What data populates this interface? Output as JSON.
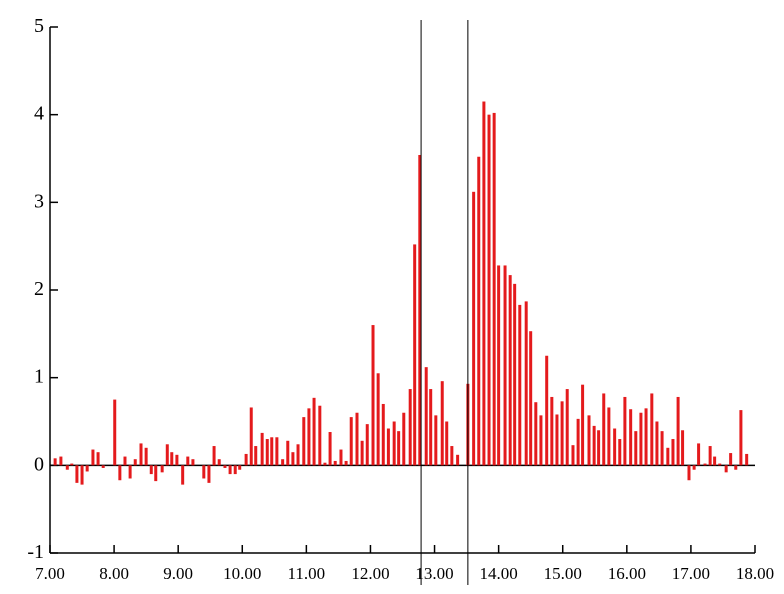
{
  "chart_data": {
    "type": "bar",
    "x": [
      7.08,
      7.17,
      7.27,
      7.34,
      7.42,
      7.5,
      7.58,
      7.67,
      7.75,
      7.83,
      8.01,
      8.09,
      8.17,
      8.25,
      8.33,
      8.42,
      8.5,
      8.58,
      8.65,
      8.75,
      8.83,
      8.9,
      8.98,
      9.07,
      9.15,
      9.23,
      9.4,
      9.48,
      9.56,
      9.64,
      9.73,
      9.81,
      9.89,
      9.96,
      10.06,
      10.14,
      10.21,
      10.31,
      10.39,
      10.46,
      10.54,
      10.63,
      10.71,
      10.79,
      10.87,
      10.96,
      11.04,
      11.12,
      11.21,
      11.29,
      11.37,
      11.45,
      11.54,
      11.62,
      11.7,
      11.79,
      11.87,
      11.95,
      12.04,
      12.12,
      12.2,
      12.28,
      12.37,
      12.44,
      12.52,
      12.62,
      12.69,
      12.77,
      12.87,
      12.94,
      13.02,
      13.12,
      13.19,
      13.27,
      13.36,
      13.52,
      13.61,
      13.69,
      13.77,
      13.85,
      13.93,
      14.0,
      14.1,
      14.18,
      14.25,
      14.33,
      14.43,
      14.5,
      14.58,
      14.66,
      14.75,
      14.83,
      14.91,
      14.99,
      15.07,
      15.16,
      15.24,
      15.31,
      15.41,
      15.49,
      15.56,
      15.64,
      15.72,
      15.81,
      15.89,
      15.97,
      16.06,
      16.14,
      16.22,
      16.3,
      16.39,
      16.47,
      16.55,
      16.64,
      16.72,
      16.8,
      16.87,
      16.97,
      17.05,
      17.12,
      17.22,
      17.3,
      17.37,
      17.45,
      17.55,
      17.62,
      17.7,
      17.78,
      17.87
    ],
    "values": [
      0.08,
      0.1,
      -0.05,
      0.02,
      -0.2,
      -0.22,
      -0.07,
      0.18,
      0.15,
      -0.03,
      0.75,
      -0.17,
      0.1,
      -0.15,
      0.07,
      0.25,
      0.2,
      -0.1,
      -0.18,
      -0.08,
      0.24,
      0.15,
      0.12,
      -0.22,
      0.1,
      0.07,
      -0.15,
      -0.2,
      0.22,
      0.07,
      -0.03,
      -0.1,
      -0.1,
      -0.05,
      0.13,
      0.66,
      0.22,
      0.37,
      0.3,
      0.32,
      0.32,
      0.07,
      0.28,
      0.15,
      0.24,
      0.55,
      0.65,
      0.77,
      0.68,
      0.03,
      0.38,
      0.05,
      0.18,
      0.05,
      0.55,
      0.6,
      0.28,
      0.47,
      1.6,
      1.05,
      0.7,
      0.42,
      0.5,
      0.39,
      0.6,
      0.87,
      2.52,
      3.54,
      1.12,
      0.87,
      0.57,
      0.96,
      0.5,
      0.22,
      0.12,
      0.93,
      3.12,
      3.52,
      4.15,
      4.0,
      4.02,
      2.28,
      2.28,
      2.17,
      2.07,
      1.83,
      1.87,
      1.53,
      0.72,
      0.57,
      1.25,
      0.78,
      0.58,
      0.73,
      0.87,
      0.23,
      0.53,
      0.92,
      0.57,
      0.45,
      0.4,
      0.82,
      0.66,
      0.42,
      0.3,
      0.78,
      0.64,
      0.39,
      0.6,
      0.65,
      0.82,
      0.5,
      0.39,
      0.2,
      0.3,
      0.78,
      0.4,
      -0.17,
      -0.05,
      0.25,
      0.02,
      0.22,
      0.1,
      0.02,
      -0.08,
      0.14,
      -0.05,
      0.63,
      0.13
    ],
    "color": "#e41a1c",
    "markers": [
      12.79,
      13.52
    ],
    "xlim": [
      7,
      18
    ],
    "ylim": [
      -1,
      5
    ],
    "xticks": [
      {
        "value": 7,
        "label": "7.00"
      },
      {
        "value": 8,
        "label": "8.00"
      },
      {
        "value": 9,
        "label": "9.00"
      },
      {
        "value": 10,
        "label": "10.00"
      },
      {
        "value": 11,
        "label": "11.00"
      },
      {
        "value": 12,
        "label": "12.00"
      },
      {
        "value": 13,
        "label": "13.00"
      },
      {
        "value": 14,
        "label": "14.00"
      },
      {
        "value": 15,
        "label": "15.00"
      },
      {
        "value": 16,
        "label": "16.00"
      },
      {
        "value": 17,
        "label": "17.00"
      },
      {
        "value": 18,
        "label": "18.00"
      }
    ],
    "yticks": [
      {
        "value": -1,
        "label": "-1"
      },
      0,
      1,
      2,
      3,
      4,
      5
    ]
  }
}
